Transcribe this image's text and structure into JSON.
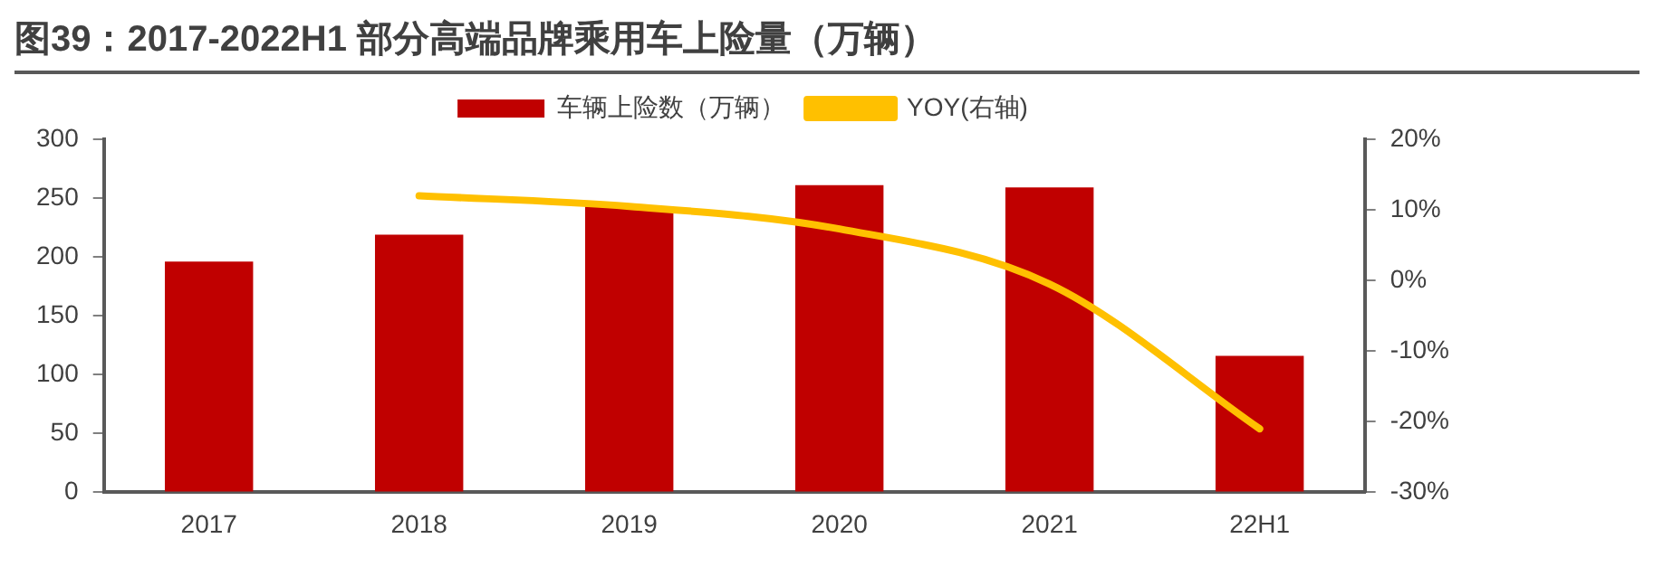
{
  "chart_data": {
    "type": "bar",
    "title": "图39：2017-2022H1 部分高端品牌乘用车上险量（万辆）",
    "categories": [
      "2017",
      "2018",
      "2019",
      "2020",
      "2021",
      "22H1"
    ],
    "series": [
      {
        "name": "车辆上险数（万辆）",
        "color": "#c00000",
        "values": [
          196,
          219,
          243,
          261,
          259,
          116
        ]
      },
      {
        "name": "YOY(右轴)",
        "type": "line",
        "axis": "y2",
        "color": "#ffc000",
        "values": [
          null,
          12,
          10.5,
          7.3,
          -0.5,
          -21
        ]
      }
    ],
    "ylim": [
      0,
      300
    ],
    "yticks": [
      0,
      50,
      100,
      150,
      200,
      250,
      300
    ],
    "y2lim": [
      -30,
      20
    ],
    "y2ticks": [
      {
        "value": -30,
        "label": "-30%"
      },
      {
        "value": -20,
        "label": "-20%"
      },
      {
        "value": -10,
        "label": "-10%"
      },
      {
        "value": 0,
        "label": "0%"
      },
      {
        "value": 10,
        "label": "10%"
      },
      {
        "value": 20,
        "label": "20%"
      }
    ],
    "grid": false,
    "legend": "top",
    "marker": "none"
  }
}
